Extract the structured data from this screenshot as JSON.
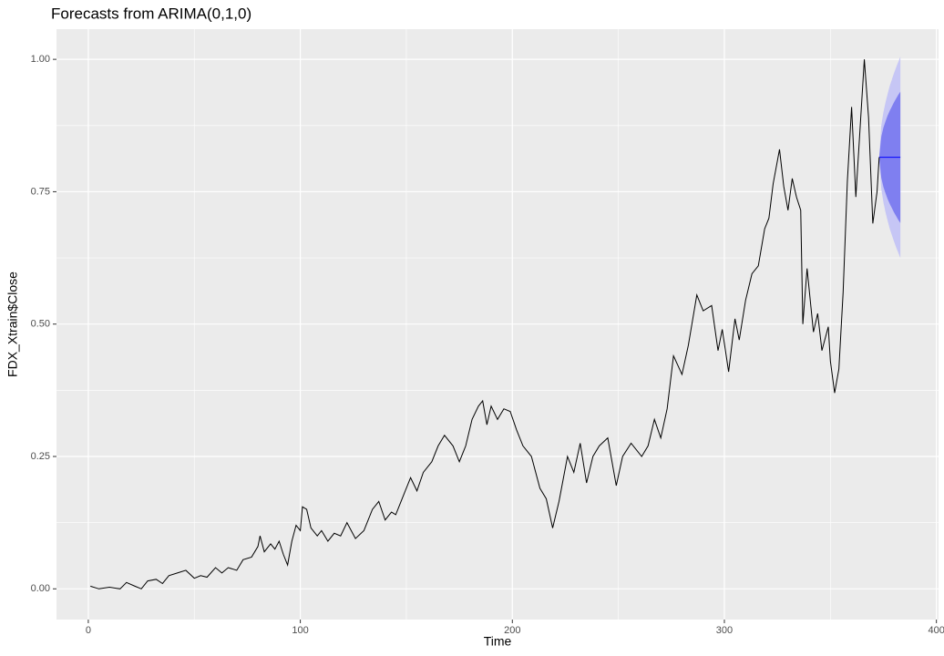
{
  "chart_data": {
    "type": "line",
    "title": "Forecasts from ARIMA(0,1,0)",
    "xlabel": "Time",
    "ylabel": "FDX_Xtrain$Close",
    "color": "#000000",
    "x": [
      1,
      5,
      10,
      15,
      18,
      22,
      25,
      28,
      32,
      35,
      38,
      42,
      46,
      50,
      53,
      56,
      60,
      63,
      66,
      70,
      73,
      77,
      80,
      81,
      83,
      86,
      88,
      90,
      92,
      94,
      96,
      98,
      100,
      101,
      103,
      105,
      108,
      110,
      113,
      116,
      119,
      122,
      124,
      126,
      130,
      134,
      137,
      140,
      143,
      145,
      148,
      152,
      155,
      158,
      162,
      165,
      168,
      172,
      175,
      178,
      181,
      184,
      186,
      188,
      190,
      193,
      196,
      199,
      202,
      205,
      209,
      213,
      216,
      219,
      222,
      226,
      229,
      232,
      235,
      238,
      241,
      245,
      249,
      252,
      256,
      261,
      264,
      267,
      270,
      273,
      276,
      280,
      283,
      287,
      290,
      294,
      297,
      299,
      302,
      305,
      307,
      310,
      313,
      316,
      319,
      321,
      323,
      326,
      328,
      330,
      332,
      334,
      336,
      337,
      339,
      342,
      344,
      346,
      349,
      350,
      352,
      354,
      356,
      358,
      360,
      362,
      364,
      366,
      368,
      370,
      372,
      373
    ],
    "values": [
      0.005,
      0.0,
      0.003,
      0.0,
      0.012,
      0.005,
      0.0,
      0.015,
      0.018,
      0.01,
      0.025,
      0.03,
      0.035,
      0.02,
      0.025,
      0.022,
      0.04,
      0.03,
      0.04,
      0.035,
      0.055,
      0.06,
      0.08,
      0.1,
      0.07,
      0.085,
      0.075,
      0.09,
      0.065,
      0.045,
      0.09,
      0.12,
      0.11,
      0.155,
      0.15,
      0.115,
      0.1,
      0.11,
      0.09,
      0.105,
      0.1,
      0.125,
      0.11,
      0.095,
      0.11,
      0.15,
      0.165,
      0.13,
      0.145,
      0.14,
      0.17,
      0.21,
      0.185,
      0.22,
      0.24,
      0.27,
      0.29,
      0.27,
      0.24,
      0.27,
      0.32,
      0.345,
      0.355,
      0.31,
      0.345,
      0.32,
      0.34,
      0.335,
      0.3,
      0.27,
      0.25,
      0.19,
      0.17,
      0.115,
      0.165,
      0.25,
      0.22,
      0.275,
      0.2,
      0.25,
      0.27,
      0.285,
      0.195,
      0.25,
      0.275,
      0.25,
      0.27,
      0.32,
      0.285,
      0.34,
      0.44,
      0.405,
      0.46,
      0.555,
      0.525,
      0.535,
      0.45,
      0.49,
      0.41,
      0.51,
      0.47,
      0.545,
      0.595,
      0.61,
      0.68,
      0.7,
      0.765,
      0.83,
      0.76,
      0.715,
      0.775,
      0.74,
      0.715,
      0.5,
      0.605,
      0.485,
      0.52,
      0.45,
      0.495,
      0.43,
      0.37,
      0.415,
      0.56,
      0.77,
      0.91,
      0.74,
      0.87,
      1.0,
      0.89,
      0.69,
      0.75,
      0.815
    ],
    "forecast": {
      "x": [
        373,
        374,
        375,
        376,
        377,
        378,
        379,
        380,
        381,
        382,
        383
      ],
      "mean": [
        0.815,
        0.815,
        0.815,
        0.815,
        0.815,
        0.815,
        0.815,
        0.815,
        0.815,
        0.815,
        0.815
      ],
      "lo80": [
        0.815,
        0.776,
        0.759,
        0.747,
        0.736,
        0.727,
        0.719,
        0.711,
        0.704,
        0.697,
        0.691
      ],
      "hi80": [
        0.815,
        0.854,
        0.871,
        0.883,
        0.894,
        0.903,
        0.911,
        0.919,
        0.926,
        0.933,
        0.939
      ],
      "lo95": [
        0.815,
        0.755,
        0.73,
        0.711,
        0.695,
        0.68,
        0.668,
        0.656,
        0.645,
        0.635,
        0.625
      ],
      "hi95": [
        0.815,
        0.875,
        0.9,
        0.919,
        0.935,
        0.95,
        0.962,
        0.974,
        0.985,
        0.995,
        1.005
      ],
      "mean_color": "#0000ff",
      "band80_color": "#7f7ff0",
      "band95_color": "#c6c6f5"
    },
    "xlim": [
      -15,
      401
    ],
    "ylim": [
      -0.058,
      1.057
    ],
    "xticks": [
      0,
      100,
      200,
      300,
      400
    ],
    "yticks": [
      {
        "value": 0,
        "label": "0.00"
      },
      {
        "value": 0.25,
        "label": "0.25"
      },
      {
        "value": 0.5,
        "label": "0.50"
      },
      {
        "value": 0.75,
        "label": "0.75"
      },
      {
        "value": 1,
        "label": "1.00"
      }
    ],
    "minor_xticks": [
      50,
      150,
      250,
      350
    ],
    "minor_yticks": [
      0.125,
      0.375,
      0.625,
      0.875
    ],
    "grid": true
  }
}
